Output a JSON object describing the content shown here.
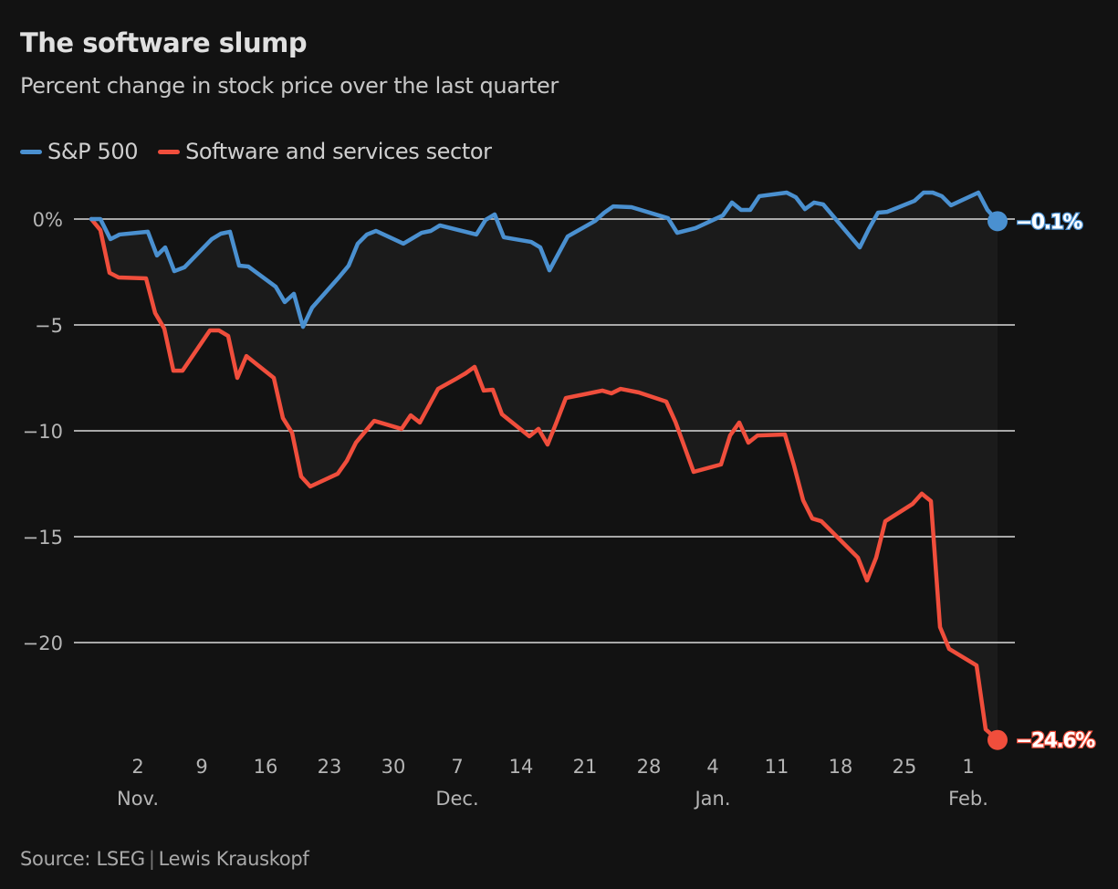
{
  "header": {
    "title": "The software slump",
    "subtitle": "Percent change in stock price over the last quarter"
  },
  "legend": [
    {
      "name": "S&P 500",
      "color": "#4a90d0"
    },
    {
      "name": "Software and services sector",
      "color": "#f04e3c"
    }
  ],
  "footer": {
    "source": "Source: LSEG",
    "separator": "|",
    "author": "Lewis Krauskopf"
  },
  "chart_data": {
    "type": "line",
    "title": "The software slump",
    "subtitle": "Percent change in stock price over the last quarter",
    "xlabel": "",
    "ylabel": "",
    "x_unit": "days since Oct. 28",
    "x_range": [
      0,
      99
    ],
    "ylim": [
      -25,
      0
    ],
    "grid": true,
    "legend_position": "top-left",
    "y_ticks": [
      {
        "value": 0,
        "label": "0%"
      },
      {
        "value": -5,
        "label": "−5"
      },
      {
        "value": -10,
        "label": "−10"
      },
      {
        "value": -15,
        "label": "−15"
      },
      {
        "value": -20,
        "label": "−20"
      }
    ],
    "x_ticks": [
      {
        "x": 5,
        "label": "2",
        "month": "Nov."
      },
      {
        "x": 12,
        "label": "9",
        "month": ""
      },
      {
        "x": 19,
        "label": "16",
        "month": ""
      },
      {
        "x": 26,
        "label": "23",
        "month": ""
      },
      {
        "x": 33,
        "label": "30",
        "month": ""
      },
      {
        "x": 40,
        "label": "7",
        "month": "Dec."
      },
      {
        "x": 47,
        "label": "14",
        "month": ""
      },
      {
        "x": 54,
        "label": "21",
        "month": ""
      },
      {
        "x": 61,
        "label": "28",
        "month": ""
      },
      {
        "x": 68,
        "label": "4",
        "month": "Jan."
      },
      {
        "x": 75,
        "label": "11",
        "month": ""
      },
      {
        "x": 82,
        "label": "18",
        "month": ""
      },
      {
        "x": 89,
        "label": "25",
        "month": ""
      },
      {
        "x": 96,
        "label": "1",
        "month": "Feb."
      }
    ],
    "series": [
      {
        "name": "S&P 500",
        "color": "#4a90d0",
        "end_label": "−0.1%",
        "x": [
          0,
          1,
          2.1,
          3.1,
          6.2,
          7.2,
          8.1,
          9.1,
          10.2,
          13.2,
          14.2,
          15.2,
          16.2,
          17.2,
          20.2,
          21.2,
          22.2,
          23.2,
          24.2,
          27.2,
          28.2,
          29.2,
          30.2,
          31.2,
          34.2,
          36.2,
          37.2,
          38.2,
          42.2,
          43.2,
          44.2,
          45.2,
          48.2,
          49.2,
          50.2,
          52.2,
          55.2,
          56.2,
          57.2,
          59.2,
          63.2,
          64.2,
          66.2,
          69.2,
          70.2,
          71.2,
          72.2,
          73.2,
          76.2,
          77.2,
          78.2,
          79.2,
          80.2,
          84.2,
          85.2,
          86.2,
          87.2,
          90.2,
          91.2,
          92.2,
          93.2,
          94.2,
          97.2,
          98.2,
          99.3
        ],
        "values": [
          0,
          0,
          -0.95,
          -0.73,
          -0.6,
          -1.72,
          -1.34,
          -2.46,
          -2.28,
          -0.95,
          -0.69,
          -0.6,
          -2.2,
          -2.24,
          -3.19,
          -3.92,
          -3.53,
          -5.09,
          -4.18,
          -2.72,
          -2.2,
          -1.16,
          -0.73,
          -0.56,
          -1.16,
          -0.65,
          -0.56,
          -0.3,
          -0.73,
          -0.04,
          0.22,
          -0.86,
          -1.08,
          -1.34,
          -2.42,
          -0.82,
          -0.09,
          0.3,
          0.6,
          0.56,
          0.04,
          -0.65,
          -0.43,
          0.17,
          0.78,
          0.43,
          0.43,
          1.08,
          1.25,
          1.03,
          0.47,
          0.78,
          0.69,
          -1.34,
          -0.47,
          0.3,
          0.34,
          0.86,
          1.25,
          1.25,
          1.08,
          0.65,
          1.25,
          0.43,
          -0.1
        ]
      },
      {
        "name": "Software and services sector",
        "color": "#f04e3c",
        "end_label": "−24.6%",
        "x": [
          0,
          1,
          2,
          3,
          6,
          7,
          8,
          9,
          10,
          13,
          14,
          15,
          16,
          17,
          20,
          21,
          22,
          23,
          24,
          27,
          28,
          29,
          30,
          31,
          34,
          35,
          36,
          38,
          40,
          41,
          42,
          43,
          44,
          45,
          48,
          49,
          50,
          51,
          52,
          55,
          56,
          57,
          58,
          60,
          63,
          64,
          66,
          69,
          70,
          71,
          72,
          73,
          76,
          77,
          78,
          79,
          80,
          84,
          85,
          86,
          87,
          90,
          91,
          92,
          93,
          94,
          97,
          98,
          99.3
        ],
        "values": [
          0,
          -0.52,
          -2.54,
          -2.76,
          -2.8,
          -4.44,
          -5.17,
          -7.16,
          -7.16,
          -5.26,
          -5.26,
          -5.52,
          -7.5,
          -6.47,
          -7.5,
          -9.4,
          -10.09,
          -12.16,
          -12.63,
          -12.03,
          -11.42,
          -10.56,
          -10.04,
          -9.53,
          -9.91,
          -9.27,
          -9.61,
          -8.02,
          -7.54,
          -7.29,
          -6.98,
          -8.1,
          -8.06,
          -9.22,
          -10.26,
          -9.91,
          -10.65,
          -9.57,
          -8.45,
          -8.19,
          -8.1,
          -8.23,
          -8.02,
          -8.19,
          -8.62,
          -9.57,
          -11.94,
          -11.59,
          -10.22,
          -9.61,
          -10.56,
          -10.22,
          -10.17,
          -11.64,
          -13.28,
          -14.14,
          -14.27,
          -15.99,
          -17.07,
          -15.99,
          -14.27,
          -13.45,
          -12.97,
          -13.32,
          -19.27,
          -20.3,
          -21.08,
          -24.1,
          -24.6
        ]
      }
    ]
  }
}
